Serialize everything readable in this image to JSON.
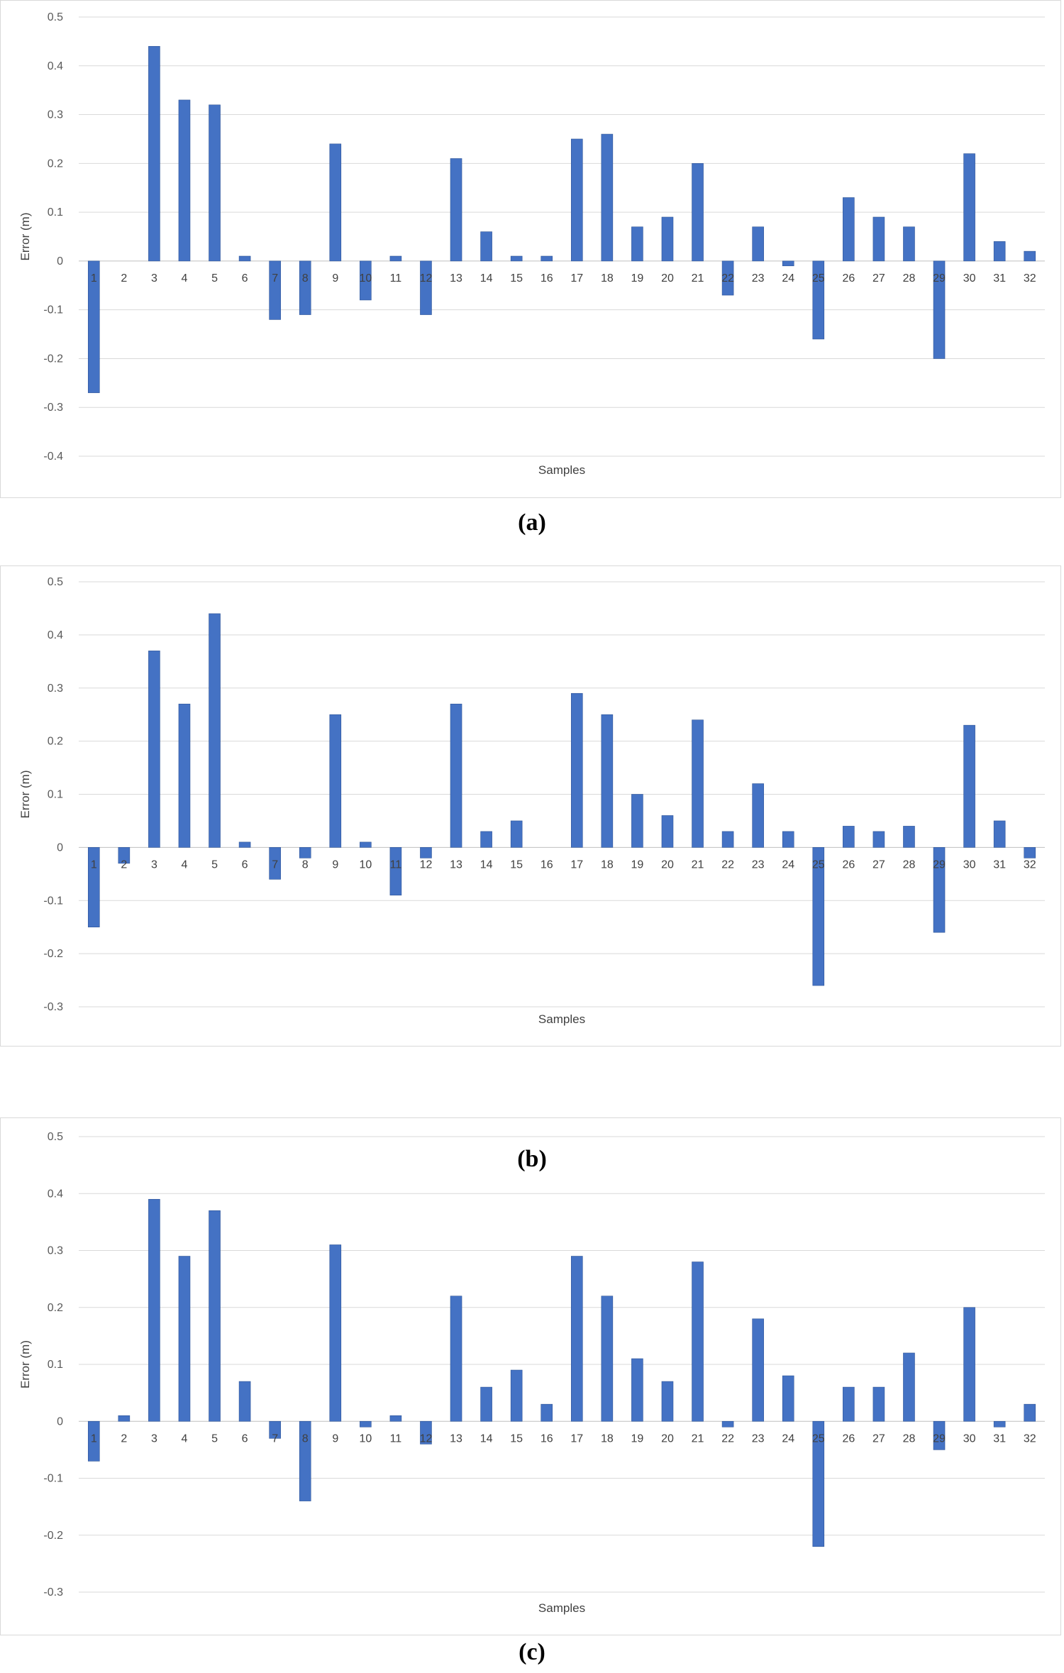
{
  "chart_data": [
    {
      "type": "bar",
      "caption": "(a)",
      "xlabel": "Samples",
      "ylabel": "Error (m)",
      "ylim": [
        -0.4,
        0.5
      ],
      "yticks": [
        0.5,
        0.4,
        0.3,
        0.2,
        0.1,
        0,
        -0.1,
        -0.2,
        -0.3,
        -0.4
      ],
      "grid": true,
      "bar_color": "#4472C4",
      "categories": [
        "1",
        "2",
        "3",
        "4",
        "5",
        "6",
        "7",
        "8",
        "9",
        "10",
        "11",
        "12",
        "13",
        "14",
        "15",
        "16",
        "17",
        "18",
        "19",
        "20",
        "21",
        "22",
        "23",
        "24",
        "25",
        "26",
        "27",
        "28",
        "29",
        "30",
        "31",
        "32"
      ],
      "values": [
        -0.27,
        0,
        0.44,
        0.33,
        0.32,
        0.01,
        -0.12,
        -0.11,
        0.24,
        -0.08,
        0.01,
        -0.11,
        0.21,
        0.06,
        0.01,
        0.01,
        0.25,
        0.26,
        0.07,
        0.09,
        0.2,
        -0.07,
        0.07,
        -0.01,
        -0.16,
        0.13,
        0.09,
        0.07,
        -0.2,
        0.22,
        0.04,
        0.02
      ]
    },
    {
      "type": "bar",
      "caption": "(b)",
      "xlabel": "Samples",
      "ylabel": "Error (m)",
      "ylim": [
        -0.3,
        0.5
      ],
      "yticks": [
        0.5,
        0.4,
        0.3,
        0.2,
        0.1,
        0,
        -0.1,
        -0.2,
        -0.3
      ],
      "grid": true,
      "bar_color": "#4472C4",
      "categories": [
        "1",
        "2",
        "3",
        "4",
        "5",
        "6",
        "7",
        "8",
        "9",
        "10",
        "11",
        "12",
        "13",
        "14",
        "15",
        "16",
        "17",
        "18",
        "19",
        "20",
        "21",
        "22",
        "23",
        "24",
        "25",
        "26",
        "27",
        "28",
        "29",
        "30",
        "31",
        "32"
      ],
      "values": [
        -0.15,
        -0.03,
        0.37,
        0.27,
        0.44,
        0.01,
        -0.06,
        -0.02,
        0.25,
        0.01,
        -0.09,
        -0.02,
        0.27,
        0.03,
        0.05,
        0,
        0.29,
        0.25,
        0.1,
        0.06,
        0.24,
        0.03,
        0.12,
        0.03,
        -0.26,
        0.04,
        0.03,
        0.04,
        -0.16,
        0.23,
        0.05,
        -0.02
      ]
    },
    {
      "type": "bar",
      "caption": "(c)",
      "xlabel": "Samples",
      "ylabel": "Error (m)",
      "ylim": [
        -0.3,
        0.5
      ],
      "yticks": [
        0.5,
        0.4,
        0.3,
        0.2,
        0.1,
        0,
        -0.1,
        -0.2,
        -0.3
      ],
      "grid": true,
      "bar_color": "#4472C4",
      "categories": [
        "1",
        "2",
        "3",
        "4",
        "5",
        "6",
        "7",
        "8",
        "9",
        "10",
        "11",
        "12",
        "13",
        "14",
        "15",
        "16",
        "17",
        "18",
        "19",
        "20",
        "21",
        "22",
        "23",
        "24",
        "25",
        "26",
        "27",
        "28",
        "29",
        "30",
        "31",
        "32"
      ],
      "values": [
        -0.07,
        0.01,
        0.39,
        0.29,
        0.37,
        0.07,
        -0.03,
        -0.14,
        0.31,
        -0.01,
        0.01,
        -0.04,
        0.22,
        0.06,
        0.09,
        0.03,
        0.29,
        0.22,
        0.11,
        0.07,
        0.28,
        -0.01,
        0.18,
        0.08,
        -0.22,
        0.06,
        0.06,
        0.12,
        -0.05,
        0.2,
        -0.01,
        0.03
      ]
    }
  ]
}
